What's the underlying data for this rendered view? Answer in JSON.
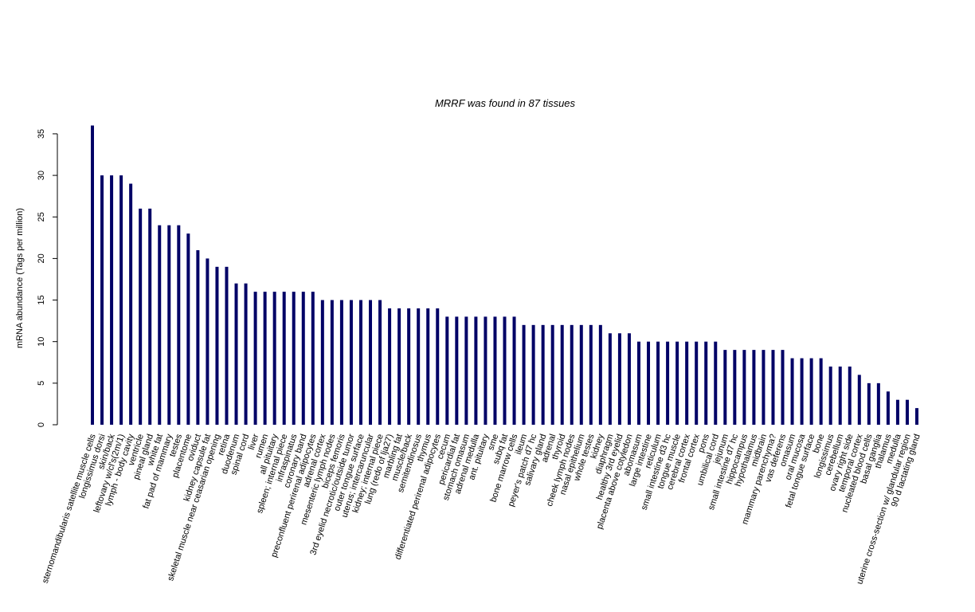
{
  "chart_data": {
    "type": "bar",
    "title": "MRRF  was found in  87  tissues",
    "y_label": "mRNA abundance (Tags per million)",
    "color": "#000066",
    "ylim": [
      0,
      36
    ],
    "yticks": [
      0,
      5,
      10,
      15,
      20,
      25,
      30,
      35
    ],
    "categories": [
      "sternomandibularis satellite muscle cells",
      "longissimus dorsi",
      "skin/back",
      "leftovary w/cl's(2m/1)",
      "lymph - body cavity",
      "ventricle",
      "pineal gland",
      "white fat",
      "fat pad of mammary",
      "testes",
      "placentome",
      "oviduct",
      "kidney capsule fat",
      "skeletal muscle near ceasarian opening",
      "retina",
      "duodenum",
      "spinal cord",
      "liver",
      "rumen",
      "all pituitary",
      "spleen; internal piece",
      "infraspinatus",
      "coronary band",
      "preconfluent perirenal adipocytes",
      "adrenal cortex",
      "mesenteric lymph nodes",
      "biceps femoris",
      "3rd eyelid necrotic/outside tumor",
      "outer tongue surface",
      "uterus; intercaruncular",
      "kidney; internal piece",
      "lung (redo of lja27)",
      "marbling fat",
      "muscle/back",
      "semitendinosus",
      "thymus",
      "differentiated perirenal adipocytes",
      "cecum",
      "pericardial fat",
      "stomach omasum",
      "adrenal medulla",
      "ant. pituitary",
      "sme",
      "subq fat",
      "bone marrow cells",
      "ileum",
      "peyer's patch d7 hc",
      "salivary gland",
      "adrenal",
      "thyroid",
      "cheek lymph nodes",
      "nasal epithelium",
      "whole testes",
      "kidney",
      "diaphragm",
      "healthy 3rd eyelid",
      "placenta above cotyledon",
      "abomasum",
      "large intestine",
      "reticulum",
      "small intestine d3 hc",
      "tongue muscle",
      "cerebral cortex",
      "frontal cortex",
      "pons",
      "umbilical cord",
      "jejunum",
      "small intestine d7 hc",
      "hippocampus",
      "hypothalamus",
      "midbrain",
      "mammary parenchyma?",
      "vas deferens",
      "omasum",
      "oral mucosa",
      "fetal tongue surface",
      "bone",
      "longissimus",
      "cerebellum",
      "ovary right side",
      "temporal cortex",
      "nucleated blood cells",
      "basal ganglia",
      "thalamus",
      "medulla",
      "uterine cross-section w/ glandular region",
      "90 d lactating gland"
    ],
    "values": [
      36,
      30,
      30,
      30,
      29,
      26,
      26,
      24,
      24,
      24,
      23,
      21,
      20,
      19,
      19,
      17,
      17,
      16,
      16,
      16,
      16,
      16,
      16,
      16,
      15,
      15,
      15,
      15,
      15,
      15,
      15,
      14,
      14,
      14,
      14,
      14,
      14,
      13,
      13,
      13,
      13,
      13,
      13,
      13,
      13,
      12,
      12,
      12,
      12,
      12,
      12,
      12,
      12,
      12,
      11,
      11,
      11,
      10,
      10,
      10,
      10,
      10,
      10,
      10,
      10,
      10,
      9,
      9,
      9,
      9,
      9,
      9,
      9,
      8,
      8,
      8,
      8,
      7,
      7,
      7,
      6,
      5,
      5,
      4,
      3,
      3,
      2
    ]
  }
}
